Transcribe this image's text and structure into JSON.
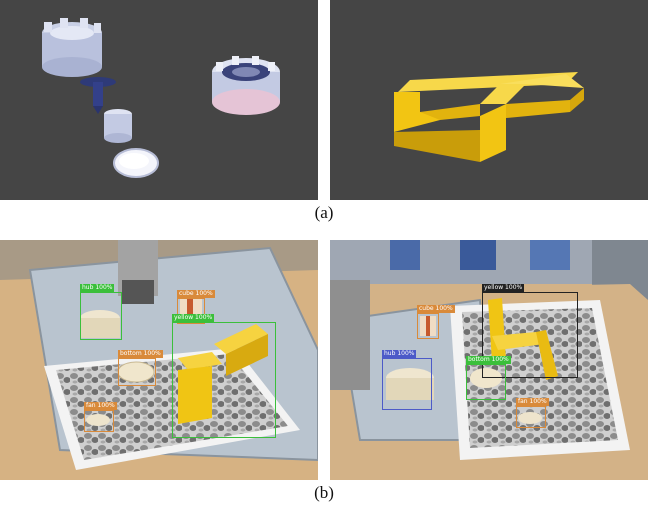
{
  "captions": {
    "a": "(a)",
    "b": "(b)"
  },
  "colors": {
    "sim_background": "#454545",
    "part_yellow": "#f2c513",
    "box_green": "#3bbf3b",
    "box_orange": "#d98a3a",
    "box_blue": "#4c5ac8",
    "box_dark": "#222222"
  },
  "detections_left": [
    {
      "label": "hub 100%",
      "color": "#3bbf3b"
    },
    {
      "label": "cube 100%",
      "color": "#d98a3a"
    },
    {
      "label": "yellow 100%",
      "color": "#3bbf3b"
    },
    {
      "label": "bottom 100%",
      "color": "#d98a3a"
    },
    {
      "label": "fan 100%",
      "color": "#d98a3a"
    }
  ],
  "detections_right": [
    {
      "label": "yellow 100%",
      "color": "#222222"
    },
    {
      "label": "cube 100%",
      "color": "#d98a3a"
    },
    {
      "label": "hub 100%",
      "color": "#4c5ac8"
    },
    {
      "label": "bottom 100%",
      "color": "#3bbf3b"
    },
    {
      "label": "fan 100%",
      "color": "#d98a3a"
    }
  ]
}
